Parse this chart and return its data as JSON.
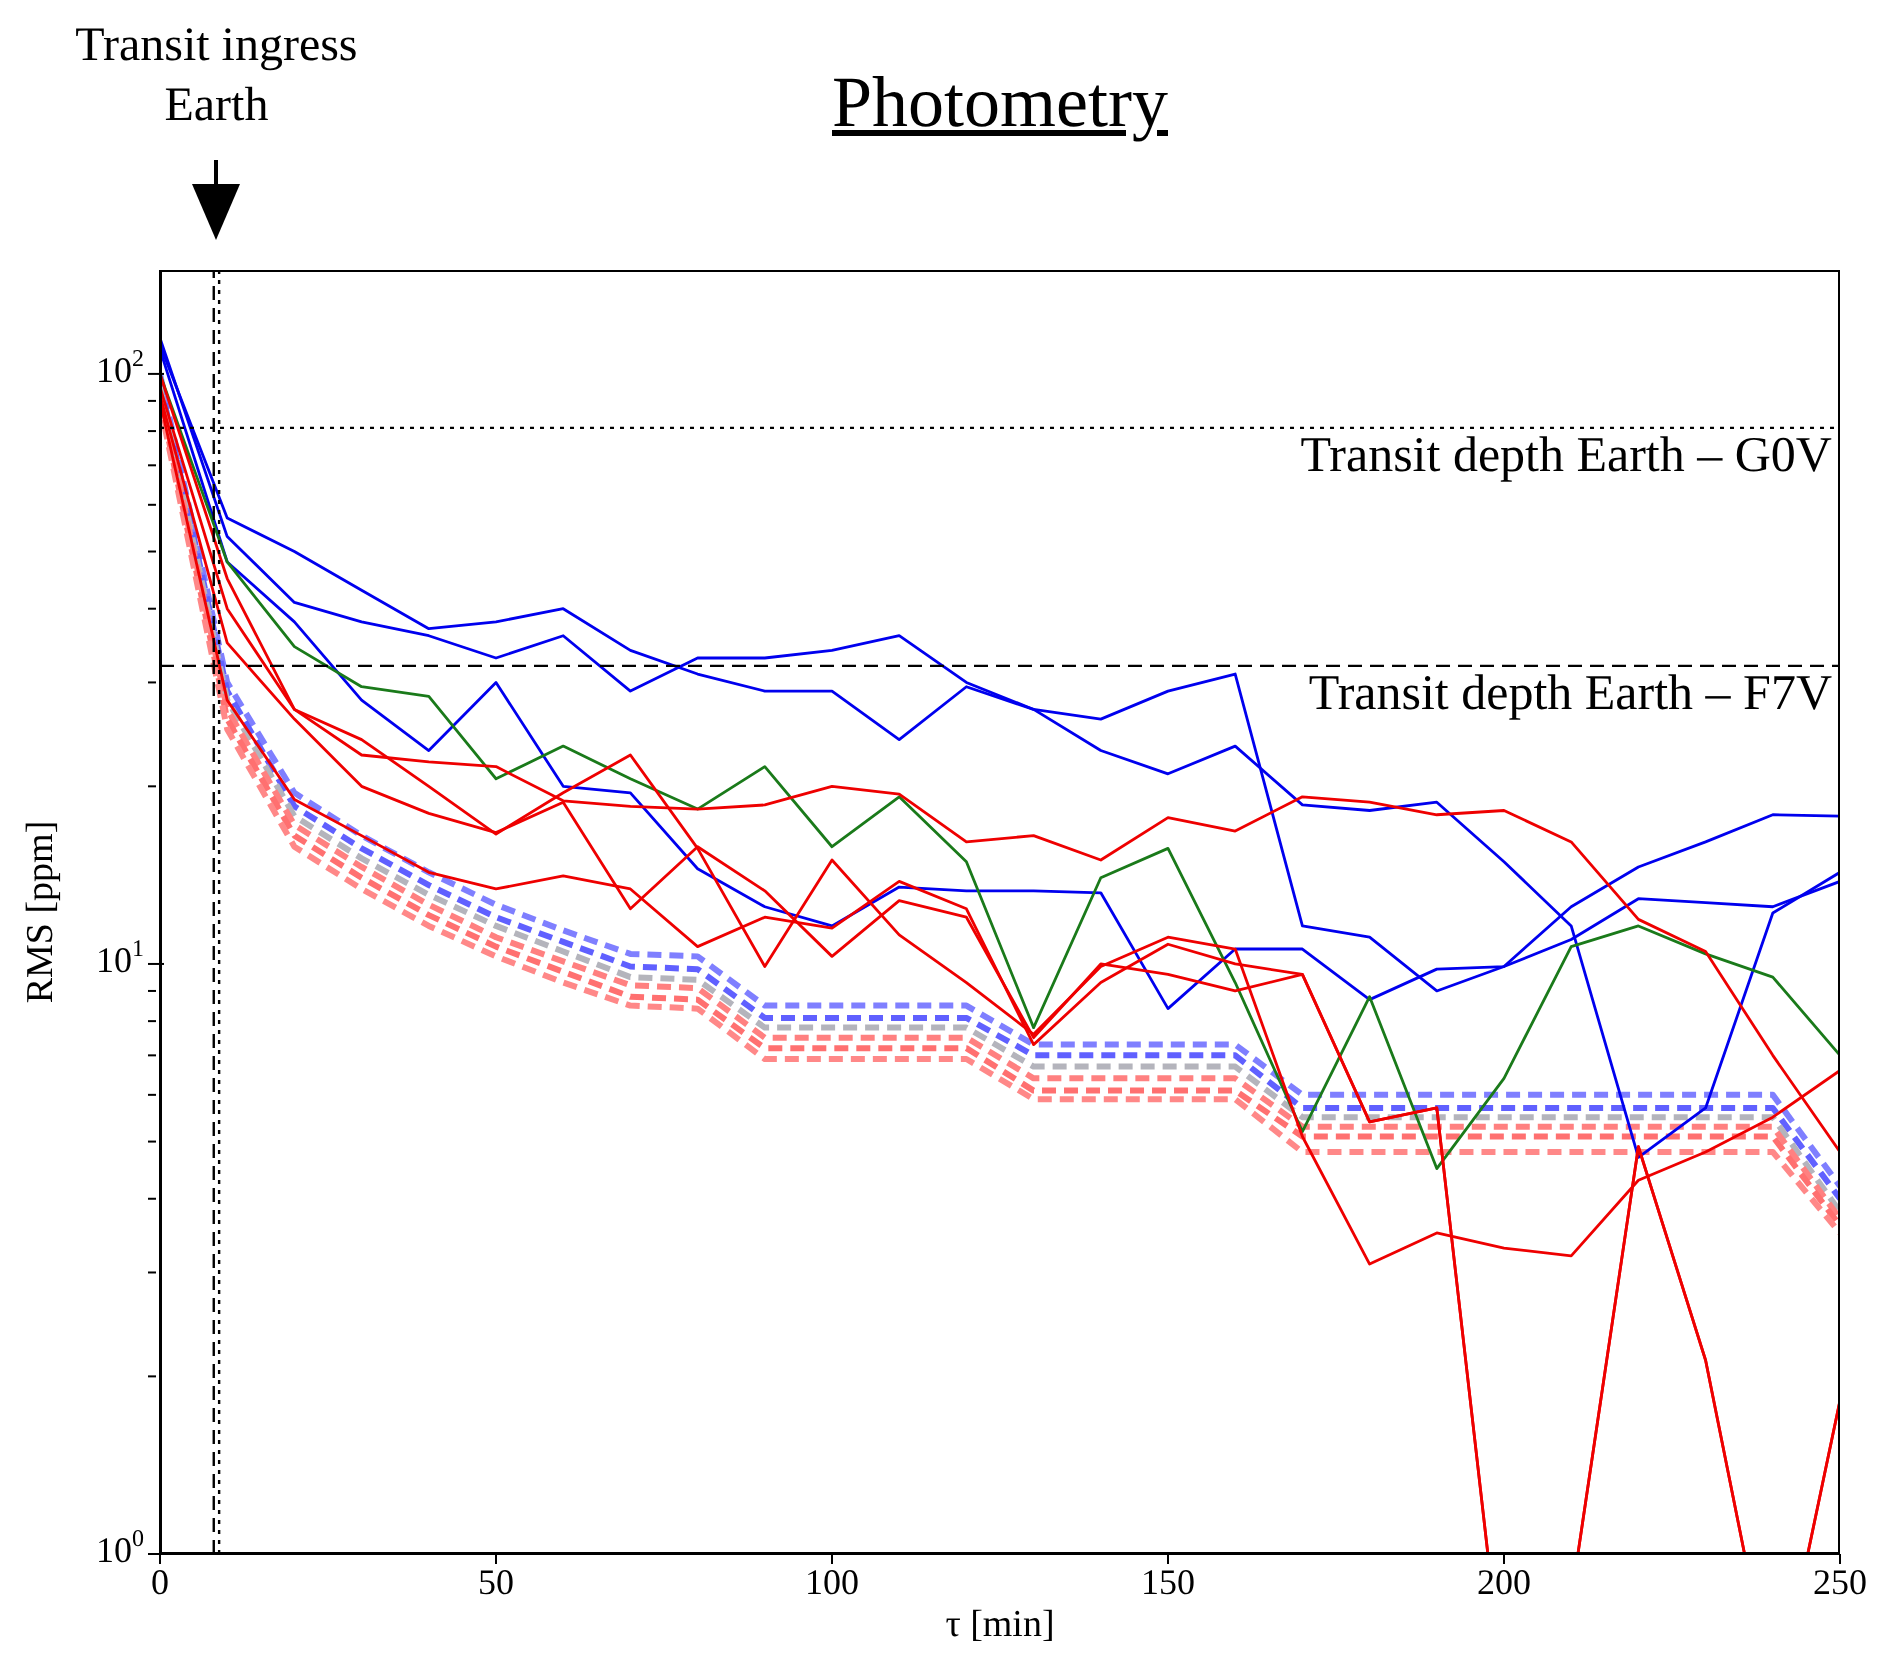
{
  "chart_data": {
    "type": "line",
    "title": "Photometry",
    "xlabel": "τ [min]",
    "ylabel": "RMS [ppm]",
    "annotations": [
      "Transit ingress\nEarth"
    ],
    "x": [
      0,
      10,
      20,
      30,
      40,
      50,
      60,
      70,
      80,
      90,
      100,
      110,
      120,
      130,
      140,
      150,
      160,
      170,
      180,
      190,
      200,
      210,
      220,
      230,
      240,
      250
    ],
    "series": [
      {
        "color": "#7f7fff",
        "line_style": "dashed",
        "values": [
          100,
          30,
          19.5,
          16.5,
          14.3,
          12.6,
          11.4,
          10.4,
          10.3,
          8.5,
          8.5,
          8.5,
          8.5,
          7.3,
          7.3,
          7.3,
          7.3,
          6.0,
          6.0,
          6.0,
          6.0,
          6.0,
          6.0,
          6.0,
          6.0,
          4.2
        ]
      },
      {
        "color": "#6060ff",
        "line_style": "dashed",
        "values": [
          97,
          29,
          18.5,
          15.7,
          13.6,
          12.0,
          10.9,
          9.9,
          9.8,
          8.1,
          8.1,
          8.1,
          8.1,
          7.0,
          7.0,
          7.0,
          7.0,
          5.7,
          5.7,
          5.7,
          5.7,
          5.7,
          5.7,
          5.7,
          5.7,
          4.0
        ]
      },
      {
        "color": "#b4b4bc",
        "line_style": "dashed",
        "values": [
          95,
          28,
          17.8,
          15.1,
          13.1,
          11.6,
          10.5,
          9.5,
          9.4,
          7.8,
          7.8,
          7.8,
          7.8,
          6.7,
          6.7,
          6.7,
          6.7,
          5.5,
          5.5,
          5.5,
          5.5,
          5.5,
          5.5,
          5.5,
          5.5,
          3.8
        ]
      },
      {
        "color": "#ff8080",
        "line_style": "dashed",
        "values": [
          93,
          27,
          17.2,
          14.6,
          12.6,
          11.1,
          10.1,
          9.2,
          9.1,
          7.5,
          7.5,
          7.5,
          7.5,
          6.4,
          6.4,
          6.4,
          6.4,
          5.3,
          5.3,
          5.3,
          5.3,
          5.3,
          5.3,
          5.3,
          5.3,
          3.7
        ]
      },
      {
        "color": "#ff7070",
        "line_style": "dashed",
        "values": [
          91,
          26,
          16.5,
          14.0,
          12.1,
          10.7,
          9.7,
          8.8,
          8.7,
          7.2,
          7.2,
          7.2,
          7.2,
          6.1,
          6.1,
          6.1,
          6.1,
          5.1,
          5.1,
          5.1,
          5.1,
          5.1,
          5.1,
          5.1,
          5.1,
          3.6
        ]
      },
      {
        "color": "#ff8888",
        "line_style": "dashed",
        "values": [
          89,
          25,
          15.8,
          13.4,
          11.6,
          10.3,
          9.3,
          8.5,
          8.4,
          6.9,
          6.9,
          6.9,
          6.9,
          5.9,
          5.9,
          5.9,
          5.9,
          4.8,
          4.8,
          4.8,
          4.8,
          4.8,
          4.8,
          4.8,
          4.8,
          3.5
        ]
      },
      {
        "color": "#0000ee",
        "line_style": "solid",
        "values": [
          112,
          57,
          50,
          43,
          37,
          38,
          40,
          34,
          31,
          29,
          29,
          24,
          29.5,
          27,
          23,
          21,
          23.4,
          18.6,
          18.2,
          18.8,
          14.9,
          11.6,
          4.7,
          5.7,
          12.2,
          14.3
        ]
      },
      {
        "color": "#0000ee",
        "line_style": "solid",
        "values": [
          115,
          53,
          41,
          38,
          36,
          33,
          36,
          29,
          33,
          33,
          34,
          36,
          30,
          27,
          26,
          29,
          31,
          11.6,
          11.1,
          9.0,
          9.9,
          12.5,
          14.6,
          16.1,
          17.9,
          17.8
        ]
      },
      {
        "color": "#0000ee",
        "line_style": "solid",
        "values": [
          110,
          48,
          38,
          28,
          23,
          30,
          20,
          19.5,
          14.5,
          12.5,
          11.6,
          13.5,
          13.3,
          13.3,
          13.2,
          8.4,
          10.6,
          10.6,
          8.7,
          9.8,
          9.9,
          11.0,
          12.9,
          12.7,
          12.5,
          13.8
        ]
      },
      {
        "color": "#1a7a1a",
        "line_style": "solid",
        "values": [
          100,
          48,
          34.5,
          29.5,
          28.4,
          20.6,
          23.4,
          20.6,
          18.3,
          21.6,
          15.8,
          19.2,
          14.9,
          7.8,
          14,
          15.7,
          9.3,
          5.2,
          8.8,
          4.5,
          6.4,
          10.7,
          11.6,
          10.4,
          9.5,
          7.0
        ]
      },
      {
        "color": "#ee0000",
        "line_style": "solid",
        "values": [
          100,
          45,
          27,
          22.6,
          22,
          21.6,
          18.9,
          18.5,
          18.3,
          18.6,
          20,
          19.4,
          16.1,
          16.5,
          15,
          17.7,
          16.8,
          19.2,
          18.8,
          17.9,
          18.2,
          16.1,
          11.9,
          10.5,
          7.0,
          4.8
        ]
      },
      {
        "color": "#ee0000",
        "line_style": "solid",
        "values": [
          95,
          40,
          27,
          24,
          20,
          16.6,
          19.5,
          22.6,
          15.7,
          9.9,
          15,
          11.2,
          9.3,
          7.6,
          9.9,
          11.1,
          10.6,
          5.1,
          3.1,
          3.5,
          3.3,
          3.2,
          4.3,
          4.8,
          5.5,
          6.6
        ]
      },
      {
        "color": "#ee0000",
        "line_style": "solid",
        "x": [
          0,
          10,
          20,
          30,
          40,
          50,
          60,
          70,
          80,
          90,
          100,
          110,
          120,
          130,
          140,
          150,
          160,
          170,
          180,
          190,
          197.6,
          211,
          220,
          230,
          235.8,
          245.2,
          250
        ],
        "values": [
          92,
          35,
          26,
          20,
          18,
          16.7,
          18.8,
          12.4,
          15.8,
          13.3,
          10.3,
          12.8,
          12,
          7.5,
          10,
          9.6,
          9.0,
          9.6,
          5.4,
          5.7,
          1,
          1,
          4.9,
          2.13,
          1,
          1,
          1.82
        ]
      },
      {
        "color": "#ee0000",
        "line_style": "solid",
        "x": [
          0,
          10,
          20,
          30,
          40,
          50,
          60,
          70,
          80,
          90,
          100,
          110,
          120,
          130,
          140,
          150,
          160,
          170,
          180,
          190,
          197.6,
          211,
          220,
          230,
          235.8,
          245.2,
          250
        ],
        "values": [
          90,
          28,
          19,
          16.5,
          14.3,
          13.4,
          14.1,
          13.4,
          10.7,
          12,
          11.5,
          13.8,
          12.4,
          7.3,
          9.3,
          10.8,
          10.0,
          9.6,
          5.4,
          5.7,
          1,
          1,
          4.9,
          2.13,
          1,
          1,
          1.82
        ]
      }
    ],
    "ref_lines": [
      {
        "axis": "y",
        "value": 81,
        "label": "Transit depth Earth –  G0V",
        "line_style": "dotted",
        "color": "#000000"
      },
      {
        "axis": "y",
        "value": 32,
        "label": "Transit depth Earth –  F7V",
        "line_style": "dashed",
        "color": "#000000"
      },
      {
        "axis": "x",
        "value": 8,
        "line_style": "dashed",
        "color": "#000000"
      },
      {
        "axis": "x",
        "value": 8.8,
        "line_style": "dotted",
        "color": "#000000"
      }
    ],
    "log": "y",
    "xlim": [
      0,
      250
    ],
    "xticks": [
      0,
      50,
      100,
      150,
      200,
      250
    ],
    "ylim": [
      1,
      150
    ],
    "yticks": [
      {
        "value": 1,
        "label": "10$^{0}$"
      },
      {
        "value": 2,
        "label": null
      },
      {
        "value": 3,
        "label": null
      },
      {
        "value": 4,
        "label": null
      },
      {
        "value": 5,
        "label": null
      },
      {
        "value": 6,
        "label": null
      },
      {
        "value": 7,
        "label": null
      },
      {
        "value": 8,
        "label": null
      },
      {
        "value": 9,
        "label": null
      },
      {
        "value": 10,
        "label": "10$^{1}$"
      },
      {
        "value": 20,
        "label": null
      },
      {
        "value": 30,
        "label": null
      },
      {
        "value": 40,
        "label": null
      },
      {
        "value": 50,
        "label": null
      },
      {
        "value": 60,
        "label": null
      },
      {
        "value": 70,
        "label": null
      },
      {
        "value": 80,
        "label": null
      },
      {
        "value": 90,
        "label": null
      },
      {
        "value": 100,
        "label": "10$^{2}$"
      }
    ]
  }
}
